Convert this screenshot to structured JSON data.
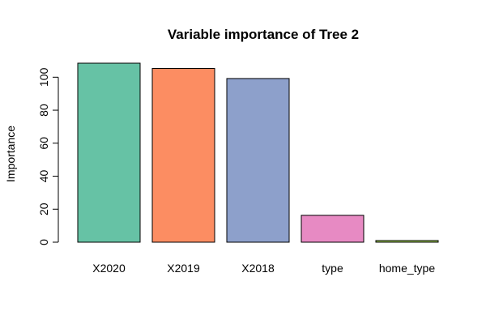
{
  "chart_data": {
    "type": "bar",
    "title": "Variable importance of Tree 2",
    "xlabel": "",
    "ylabel": "Importance",
    "categories": [
      "X2020",
      "X2019",
      "X2018",
      "type",
      "home_type"
    ],
    "values": [
      108.5,
      105.3,
      99.2,
      16.3,
      1.0
    ],
    "colors": [
      "#66C2A5",
      "#FC8D62",
      "#8DA0CB",
      "#E78AC3",
      "#A6D854"
    ],
    "yticks": [
      0,
      20,
      40,
      60,
      80,
      100
    ],
    "ylim": [
      0,
      108.5
    ],
    "grid": false,
    "legend": "none"
  }
}
